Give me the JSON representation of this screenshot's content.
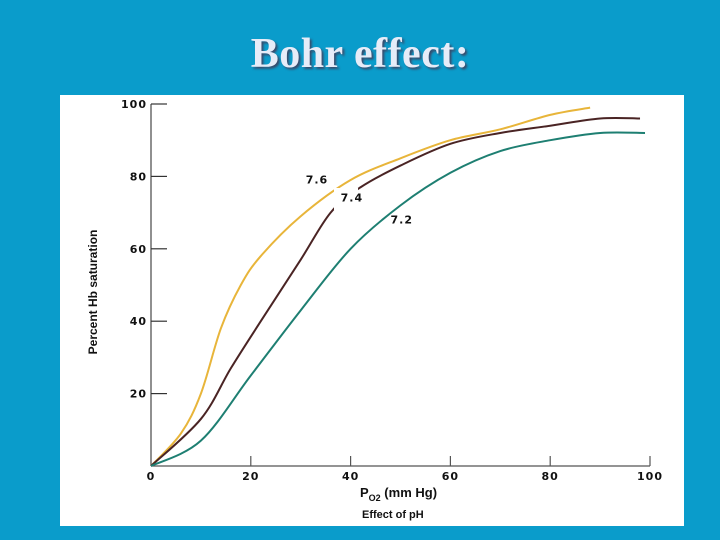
{
  "slide": {
    "title": "Bohr effect:",
    "background_color": "#0A9CCB",
    "panel_color": "#FFFFFF"
  },
  "chart_data": {
    "type": "line",
    "title": "Effect of pH",
    "xlabel": "PO2 (mm Hg)",
    "xlabel_main": "P",
    "xlabel_sub": "O2",
    "xlabel_rest": " (mm Hg)",
    "ylabel": "Percent Hb saturation",
    "xlim": [
      0,
      100
    ],
    "ylim": [
      0,
      100
    ],
    "x_ticks": [
      0,
      20,
      40,
      60,
      80,
      100
    ],
    "x_tick_labels": [
      "0",
      "20",
      "40",
      "60",
      "80",
      "100"
    ],
    "y_ticks": [
      20,
      40,
      60,
      80,
      100
    ],
    "y_tick_labels": [
      "20",
      "40",
      "60",
      "80",
      "100"
    ],
    "grid": false,
    "legend": "inline curve labels",
    "series": [
      {
        "name": "7.6",
        "color": "#E8B53A",
        "x": [
          0,
          6,
          10,
          14,
          18,
          22,
          30,
          40,
          50,
          60,
          70,
          80,
          88
        ],
        "y": [
          0,
          9,
          20,
          38,
          50,
          58,
          69,
          79,
          85,
          90,
          93,
          97,
          99
        ]
      },
      {
        "name": "7.4",
        "color": "#4A2424",
        "x": [
          0,
          10,
          16,
          22,
          30,
          36,
          42,
          50,
          60,
          70,
          80,
          90,
          98
        ],
        "y": [
          0,
          13,
          27,
          40,
          57,
          70,
          77,
          83,
          89,
          92,
          94,
          96,
          96
        ]
      },
      {
        "name": "7.2",
        "color": "#1E7F72",
        "x": [
          0,
          10,
          20,
          30,
          40,
          50,
          60,
          70,
          80,
          90,
          99
        ],
        "y": [
          0,
          7,
          25,
          43,
          60,
          72,
          81,
          87,
          90,
          92,
          92
        ]
      }
    ],
    "curve_labels": [
      {
        "text": "7.6",
        "x": 31,
        "y": 78
      },
      {
        "text": "7.4",
        "x": 38,
        "y": 73
      },
      {
        "text": "7.2",
        "x": 48,
        "y": 67
      }
    ]
  }
}
